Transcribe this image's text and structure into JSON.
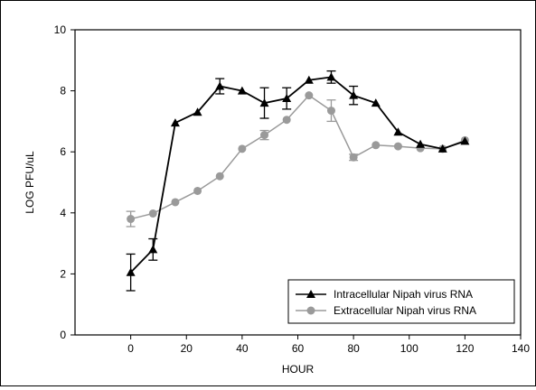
{
  "chart_data": {
    "type": "line",
    "title": "",
    "xlabel": "HOUR",
    "ylabel": "LOG PFU/uL",
    "xlim": [
      -20,
      140
    ],
    "ylim": [
      0,
      10
    ],
    "xticks": [
      0,
      20,
      40,
      60,
      80,
      100,
      120,
      140
    ],
    "yticks": [
      0,
      2,
      4,
      6,
      8,
      10
    ],
    "grid": false,
    "legend_position": "bottom-right",
    "series": [
      {
        "name": "Intracellular Nipah virus RNA",
        "color": "#000000",
        "marker": "triangle",
        "x": [
          0,
          8,
          16,
          24,
          32,
          40,
          48,
          56,
          64,
          72,
          80,
          88,
          96,
          104,
          112,
          120
        ],
        "y": [
          2.05,
          2.8,
          6.95,
          7.3,
          8.15,
          8.0,
          7.6,
          7.75,
          8.35,
          8.45,
          7.85,
          7.6,
          6.65,
          6.25,
          6.1,
          6.35
        ],
        "err": [
          0.6,
          0.35,
          0.05,
          0.05,
          0.25,
          0.05,
          0.5,
          0.35,
          0.05,
          0.2,
          0.3,
          0.05,
          0.05,
          0.05,
          0.05,
          0.05
        ]
      },
      {
        "name": "Extracellular Nipah virus RNA",
        "color": "#9a9a9a",
        "marker": "circle",
        "x": [
          0,
          8,
          16,
          24,
          32,
          40,
          48,
          56,
          64,
          72,
          80,
          88,
          96,
          104,
          112,
          120
        ],
        "y": [
          3.8,
          3.98,
          4.35,
          4.72,
          5.2,
          6.1,
          6.55,
          7.05,
          7.85,
          7.35,
          5.82,
          6.22,
          6.18,
          6.12,
          6.1,
          6.38
        ],
        "err": [
          0.25,
          0.05,
          0.05,
          0.05,
          0.05,
          0.05,
          0.15,
          0.05,
          0.05,
          0.35,
          0.1,
          0.05,
          0.05,
          0.05,
          0.05,
          0.05
        ]
      }
    ]
  }
}
